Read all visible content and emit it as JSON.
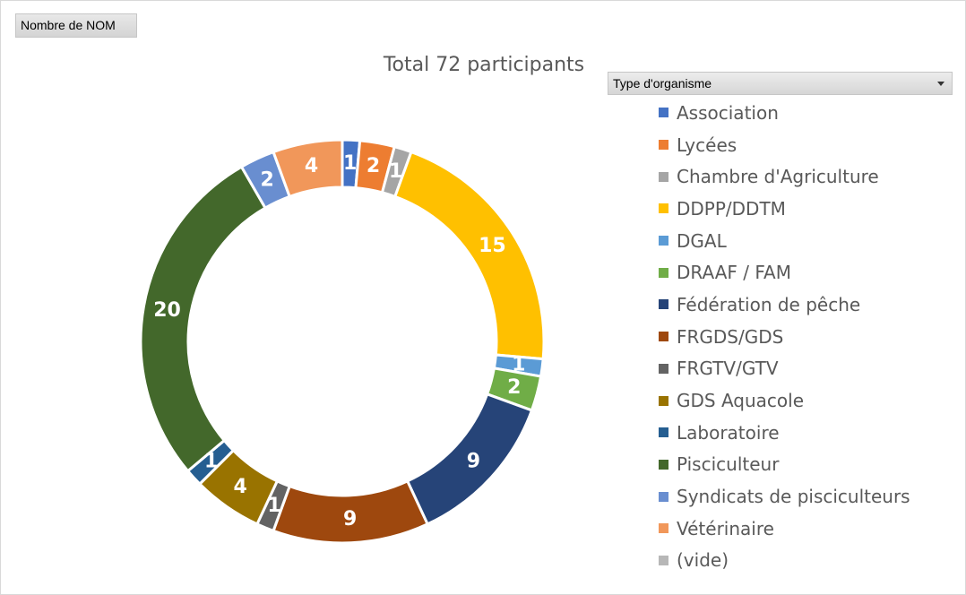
{
  "field_button": {
    "label": "Nombre de NOM"
  },
  "legend_filter": {
    "label": "Type d'organisme"
  },
  "chart_data": {
    "type": "pie",
    "donut": true,
    "title": "Total 72 participants",
    "legend_position": "right",
    "total": 72,
    "series": [
      {
        "name": "Nombre de NOM",
        "values": [
          1,
          2,
          1,
          15,
          1,
          2,
          9,
          9,
          1,
          4,
          1,
          20,
          2,
          4
        ]
      }
    ],
    "categories": [
      "Association",
      "Lycées",
      "Chambre d'Agriculture",
      "DDPP/DDTM",
      "DGAL",
      "DRAAF / FAM",
      "Fédération de pêche",
      "FRGDS/GDS",
      "FRGTV/GTV",
      "GDS Aquacole",
      "Laboratoire",
      "Pisciculteur",
      "Syndicats de pisciculteurs",
      "Vétérinaire"
    ],
    "values": [
      1,
      2,
      1,
      15,
      1,
      2,
      9,
      9,
      1,
      4,
      1,
      20,
      2,
      4
    ],
    "colors": [
      "#4472C4",
      "#ED7D31",
      "#A5A5A5",
      "#FFC000",
      "#5B9BD5",
      "#70AD47",
      "#264478",
      "#9E480E",
      "#636363",
      "#997300",
      "#255E91",
      "#43682B",
      "#698ED0",
      "#F1975A"
    ],
    "legend": [
      {
        "label": "Association",
        "color": "#4472C4"
      },
      {
        "label": "Lycées",
        "color": "#ED7D31"
      },
      {
        "label": "Chambre d'Agriculture",
        "color": "#A5A5A5"
      },
      {
        "label": "DDPP/DDTM",
        "color": "#FFC000"
      },
      {
        "label": "DGAL",
        "color": "#5B9BD5"
      },
      {
        "label": "DRAAF / FAM",
        "color": "#70AD47"
      },
      {
        "label": "Fédération de pêche",
        "color": "#264478"
      },
      {
        "label": "FRGDS/GDS",
        "color": "#9E480E"
      },
      {
        "label": "FRGTV/GTV",
        "color": "#636363"
      },
      {
        "label": "GDS Aquacole",
        "color": "#997300"
      },
      {
        "label": "Laboratoire",
        "color": "#255E91"
      },
      {
        "label": "Pisciculteur",
        "color": "#43682B"
      },
      {
        "label": "Syndicats de pisciculteurs",
        "color": "#698ED0"
      },
      {
        "label": "Vétérinaire",
        "color": "#F1975A"
      },
      {
        "label": "(vide)",
        "color": "#B7B7B7"
      }
    ]
  }
}
